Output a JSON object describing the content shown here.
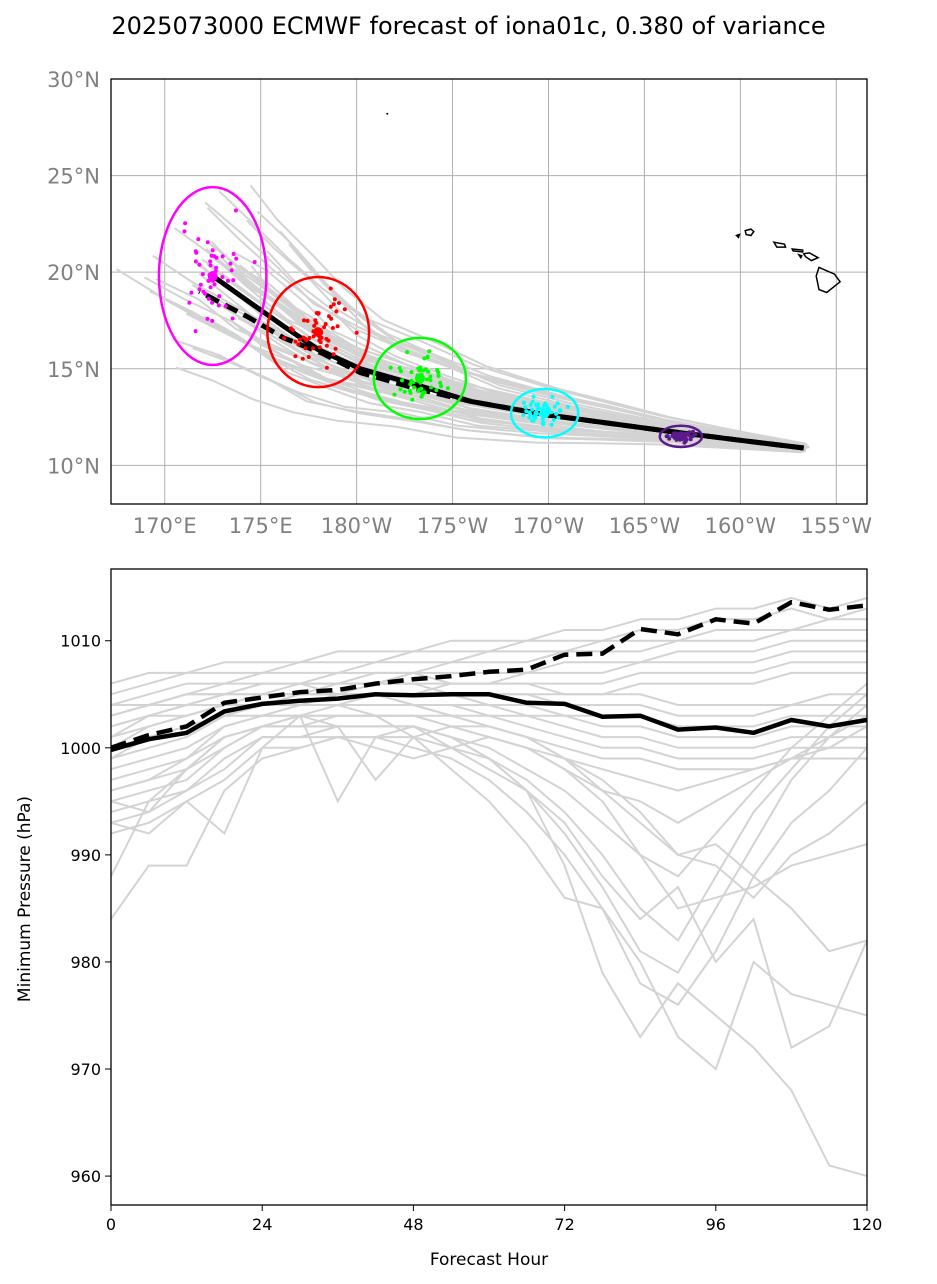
{
  "title": "2025073000 ECMWF forecast of iona01c, 0.380 of variance",
  "chart_data": [
    {
      "type": "map-track",
      "lon_ticks": [
        170,
        175,
        180,
        185,
        190,
        195,
        200,
        205
      ],
      "lon_tick_labels": [
        "170°E",
        "175°E",
        "180°W",
        "175°W",
        "170°W",
        "165°W",
        "160°W",
        "155°W"
      ],
      "lat_ticks": [
        10,
        15,
        20,
        25,
        30
      ],
      "lat_tick_labels": [
        "10°N",
        "15°N",
        "20°N",
        "25°N",
        "30°N"
      ],
      "xlim": [
        167.2,
        206.6
      ],
      "ylim": [
        8,
        30
      ],
      "grid": true,
      "mean_track": {
        "lon": [
          203.3,
          200.0,
          196.0,
          193.0,
          190.0,
          186.0,
          183.0,
          180.2,
          178.0,
          176.2,
          174.2,
          172.5
        ],
        "lat": [
          10.9,
          11.3,
          11.8,
          12.2,
          12.6,
          13.3,
          14.2,
          15.0,
          16.0,
          17.2,
          18.6,
          19.8
        ]
      },
      "control_track": {
        "lon": [
          203.3,
          200.0,
          196.0,
          193.0,
          190.0,
          186.0,
          183.0,
          180.2,
          178.2,
          176.2,
          174.3,
          171.8
        ],
        "lat": [
          10.9,
          11.3,
          11.8,
          12.2,
          12.6,
          13.3,
          14.0,
          14.8,
          15.8,
          16.6,
          17.7,
          19.0
        ]
      },
      "ellipses": [
        {
          "color": "#ff00ff",
          "center": [
            172.5,
            19.8
          ],
          "radius": [
            2.8,
            4.6
          ]
        },
        {
          "color": "#ff0000",
          "center": [
            178.0,
            16.9
          ],
          "radius": [
            2.65,
            2.85
          ]
        },
        {
          "color": "#00ff00",
          "center": [
            183.3,
            14.5
          ],
          "radius": [
            2.4,
            2.1
          ]
        },
        {
          "color": "#00ffff",
          "center": [
            189.8,
            12.7
          ],
          "radius": [
            1.75,
            1.25
          ]
        },
        {
          "color": "#5b1a8a",
          "center": [
            196.9,
            11.5
          ],
          "radius": [
            1.1,
            0.55
          ]
        }
      ],
      "ensemble_track_color": "#d3d3d3"
    },
    {
      "type": "line",
      "x": [
        0,
        6,
        12,
        18,
        24,
        30,
        36,
        42,
        48,
        54,
        60,
        66,
        72,
        78,
        84,
        90,
        96,
        102,
        108,
        114,
        120
      ],
      "xlim": [
        0,
        120
      ],
      "ylim": [
        957.3,
        1016.7
      ],
      "xticks": [
        0,
        24,
        48,
        72,
        96,
        120
      ],
      "yticks": [
        960,
        970,
        980,
        990,
        1000,
        1010
      ],
      "xlabel": "Forecast Hour",
      "ylabel": "Minimum Pressure (hPa)",
      "series": [
        {
          "style": "solid",
          "color": "#000000",
          "values": [
            999.8,
            1000.8,
            1001.4,
            1003.4,
            1004.1,
            1004.4,
            1004.6,
            1005.0,
            1004.9,
            1005.0,
            1005.0,
            1004.2,
            1004.1,
            1002.9,
            1003.0,
            1001.7,
            1001.9,
            1001.4,
            1002.6,
            1002.0,
            1002.6
          ]
        },
        {
          "style": "dashed",
          "color": "#000000",
          "values": [
            1000.0,
            1001.2,
            1002.0,
            1004.2,
            1004.7,
            1005.2,
            1005.4,
            1006.0,
            1006.4,
            1006.7,
            1007.1,
            1007.3,
            1008.7,
            1008.8,
            1011.1,
            1010.6,
            1012.0,
            1011.6,
            1013.6,
            1012.9,
            1013.3
          ]
        }
      ],
      "ensemble_color": "#d3d3d3",
      "ensemble": [
        [
          1006,
          1007,
          1007,
          1008,
          1008,
          1008,
          1009,
          1009,
          1009,
          1010,
          1010,
          1010,
          1011,
          1011,
          1012,
          1012,
          1013,
          1013,
          1014,
          1013,
          1014
        ],
        [
          1005,
          1006,
          1007,
          1007,
          1007,
          1008,
          1008,
          1008,
          1009,
          1009,
          1009,
          1010,
          1010,
          1010,
          1011,
          1011,
          1012,
          1012,
          1013,
          1012,
          1013
        ],
        [
          1004,
          1005,
          1006,
          1006,
          1007,
          1007,
          1007,
          1008,
          1008,
          1008,
          1009,
          1009,
          1009,
          1010,
          1010,
          1010,
          1011,
          1011,
          1011,
          1012,
          1012
        ],
        [
          1003,
          1004,
          1005,
          1006,
          1006,
          1006,
          1007,
          1007,
          1007,
          1008,
          1008,
          1008,
          1009,
          1009,
          1009,
          1010,
          1010,
          1010,
          1011,
          1011,
          1011
        ],
        [
          1002,
          1003,
          1004,
          1005,
          1005,
          1006,
          1006,
          1006,
          1007,
          1007,
          1007,
          1007,
          1008,
          1008,
          1008,
          1009,
          1009,
          1009,
          1010,
          1010,
          1010
        ],
        [
          1001,
          1003,
          1003,
          1004,
          1005,
          1005,
          1005,
          1006,
          1006,
          1006,
          1006,
          1007,
          1007,
          1007,
          1008,
          1008,
          1008,
          1008,
          1009,
          1009,
          1009
        ],
        [
          1000,
          1002,
          1003,
          1004,
          1004,
          1005,
          1005,
          1005,
          1005,
          1006,
          1006,
          1006,
          1006,
          1006,
          1007,
          1007,
          1007,
          1007,
          1008,
          1008,
          1008
        ],
        [
          999,
          1001,
          1002,
          1003,
          1004,
          1004,
          1004,
          1005,
          1005,
          1005,
          1005,
          1005,
          1005,
          1005,
          1006,
          1006,
          1006,
          1006,
          1007,
          1007,
          1007
        ],
        [
          1004,
          1004,
          1005,
          1005,
          1006,
          1006,
          1006,
          1007,
          1007,
          1006,
          1006,
          1006,
          1005,
          1005,
          1005,
          1004,
          1004,
          1004,
          1004,
          1005,
          1005
        ],
        [
          1003,
          1004,
          1004,
          1005,
          1005,
          1005,
          1006,
          1006,
          1006,
          1005,
          1005,
          1005,
          1004,
          1004,
          1004,
          1003,
          1003,
          1003,
          1004,
          1004,
          1004
        ],
        [
          1002,
          1003,
          1004,
          1004,
          1005,
          1005,
          1005,
          1005,
          1005,
          1005,
          1004,
          1004,
          1003,
          1003,
          1003,
          1002,
          1002,
          1002,
          1003,
          1003,
          1003
        ],
        [
          1001,
          1002,
          1003,
          1004,
          1004,
          1004,
          1005,
          1005,
          1004,
          1004,
          1004,
          1003,
          1003,
          1002,
          1002,
          1001,
          1001,
          1001,
          1002,
          1002,
          1002
        ],
        [
          1000,
          1001,
          1002,
          1003,
          1004,
          1004,
          1004,
          1004,
          1004,
          1004,
          1003,
          1003,
          1002,
          1001,
          1001,
          1000,
          1000,
          1000,
          1001,
          1001,
          1001
        ],
        [
          999,
          1000,
          1001,
          1003,
          1003,
          1004,
          1004,
          1004,
          1004,
          1003,
          1003,
          1002,
          1001,
          1000,
          1000,
          999,
          999,
          999,
          1000,
          1000,
          1000
        ],
        [
          998,
          999,
          1000,
          1002,
          1003,
          1003,
          1003,
          1003,
          1003,
          1003,
          1002,
          1001,
          1000,
          999,
          999,
          998,
          998,
          998,
          999,
          999,
          999
        ],
        [
          997,
          998,
          999,
          1001,
          1002,
          1003,
          1003,
          1003,
          1003,
          1002,
          1002,
          1001,
          999,
          998,
          997,
          996,
          997,
          998,
          999,
          1000,
          1002
        ],
        [
          996,
          997,
          998,
          1001,
          1002,
          1002,
          1003,
          1003,
          1003,
          1002,
          1001,
          1000,
          998,
          996,
          995,
          993,
          995,
          997,
          999,
          1001,
          1003
        ],
        [
          995,
          996,
          997,
          1000,
          1002,
          1002,
          1002,
          1002,
          1002,
          1001,
          1000,
          998,
          996,
          993,
          990,
          988,
          992,
          996,
          1000,
          1003,
          1006
        ],
        [
          994,
          995,
          996,
          999,
          1001,
          1001,
          1002,
          1002,
          1002,
          1000,
          999,
          997,
          994,
          990,
          985,
          982,
          988,
          994,
          998,
          1002,
          1005
        ],
        [
          993,
          994,
          996,
          998,
          1001,
          1001,
          1001,
          1001,
          1001,
          1000,
          998,
          996,
          992,
          987,
          981,
          979,
          985,
          991,
          997,
          1001,
          1004
        ],
        [
          992,
          993,
          995,
          997,
          1000,
          1000,
          1001,
          1001,
          1000,
          999,
          997,
          994,
          990,
          985,
          978,
          976,
          981,
          988,
          993,
          996,
          1000
        ],
        [
          995,
          994,
          998,
          1000,
          1002,
          1003,
          1002,
          1002,
          1002,
          1001,
          999,
          996,
          989,
          979,
          973,
          978,
          975,
          972,
          968,
          961,
          960
        ],
        [
          993,
          992,
          995,
          992,
          1000,
          1003,
          1004,
          1003,
          1001,
          998,
          995,
          991,
          986,
          985,
          980,
          973,
          970,
          980,
          977,
          976,
          975
        ],
        [
          996,
          997,
          999,
          1002,
          1003,
          1003,
          995,
          1001,
          1002,
          1001,
          999,
          996,
          993,
          988,
          984,
          987,
          980,
          984,
          972,
          974,
          982
        ],
        [
          988,
          995,
          998,
          1001,
          1002,
          1002,
          1002,
          997,
          1001,
          1002,
          1001,
          1000,
          999,
          997,
          994,
          990,
          991,
          988,
          985,
          981,
          982
        ],
        [
          984,
          989,
          989,
          996,
          999,
          1000,
          1001,
          1000,
          999,
          1000,
          1001,
          1000,
          998,
          995,
          990,
          985,
          986,
          987,
          989,
          990,
          991
        ],
        [
          1003,
          1004,
          1005,
          1005,
          1006,
          1006,
          1005,
          1005,
          1004,
          1003,
          1002,
          1001,
          999,
          996,
          993,
          990,
          989,
          986,
          990,
          992,
          995
        ]
      ]
    }
  ]
}
